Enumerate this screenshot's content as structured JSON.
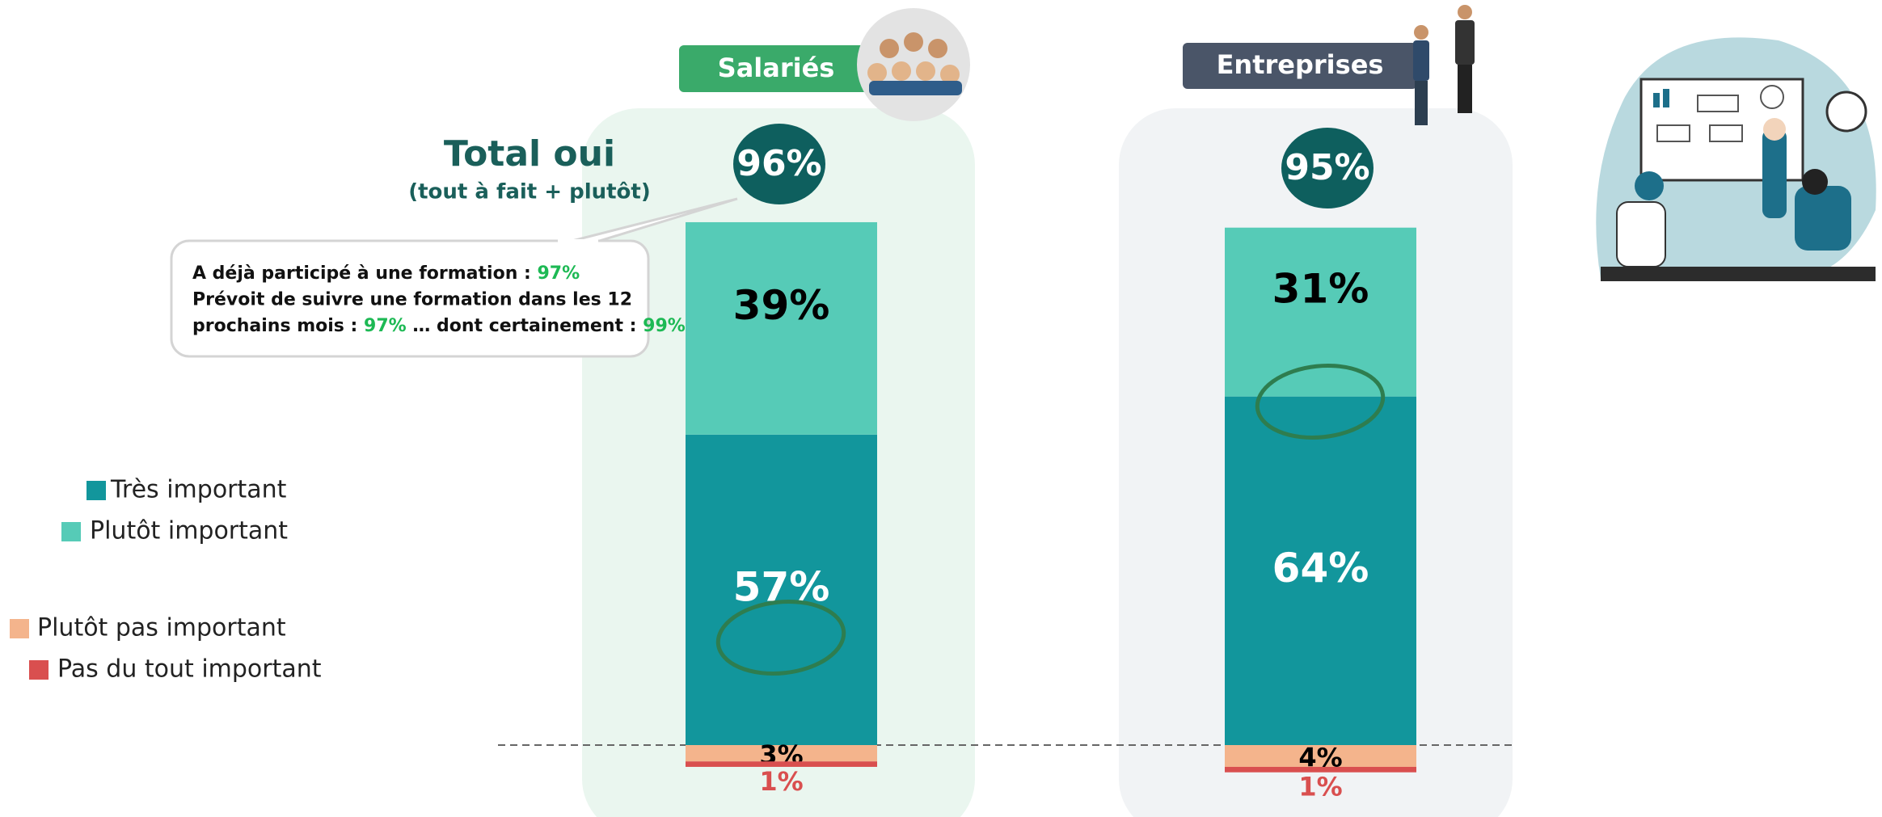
{
  "chart_data": {
    "type": "stacked-bar",
    "categories": [
      "Salariés",
      "Entreprises"
    ],
    "series": [
      {
        "name": "Très important",
        "color": "#12969c",
        "values": [
          57,
          64
        ],
        "value_labels": [
          "57%",
          "64%"
        ]
      },
      {
        "name": "Plutôt important",
        "color": "#56cbb7",
        "values": [
          39,
          31
        ],
        "value_labels": [
          "39%",
          "31%"
        ]
      },
      {
        "name": "Plutôt pas important",
        "color": "#f4b48c",
        "values": [
          3,
          4
        ],
        "value_labels": [
          "3%",
          "4%"
        ]
      },
      {
        "name": "Pas du tout important",
        "color": "#d94f4f",
        "values": [
          1,
          1
        ],
        "value_labels": [
          "1%",
          "1%"
        ]
      }
    ],
    "totals": {
      "title": "Total oui",
      "subtitle": "(tout à fait + plutôt)",
      "values": [
        96,
        95
      ],
      "value_labels": [
        "96%",
        "95%"
      ]
    },
    "callout": {
      "lines": [
        [
          "A déjà participé à une formation : ",
          "97%"
        ],
        [
          "Prévoit de suivre une formation dans les 12"
        ],
        [
          "prochains mois : ",
          "97%",
          " … dont certainement : ",
          "99%"
        ]
      ]
    }
  }
}
